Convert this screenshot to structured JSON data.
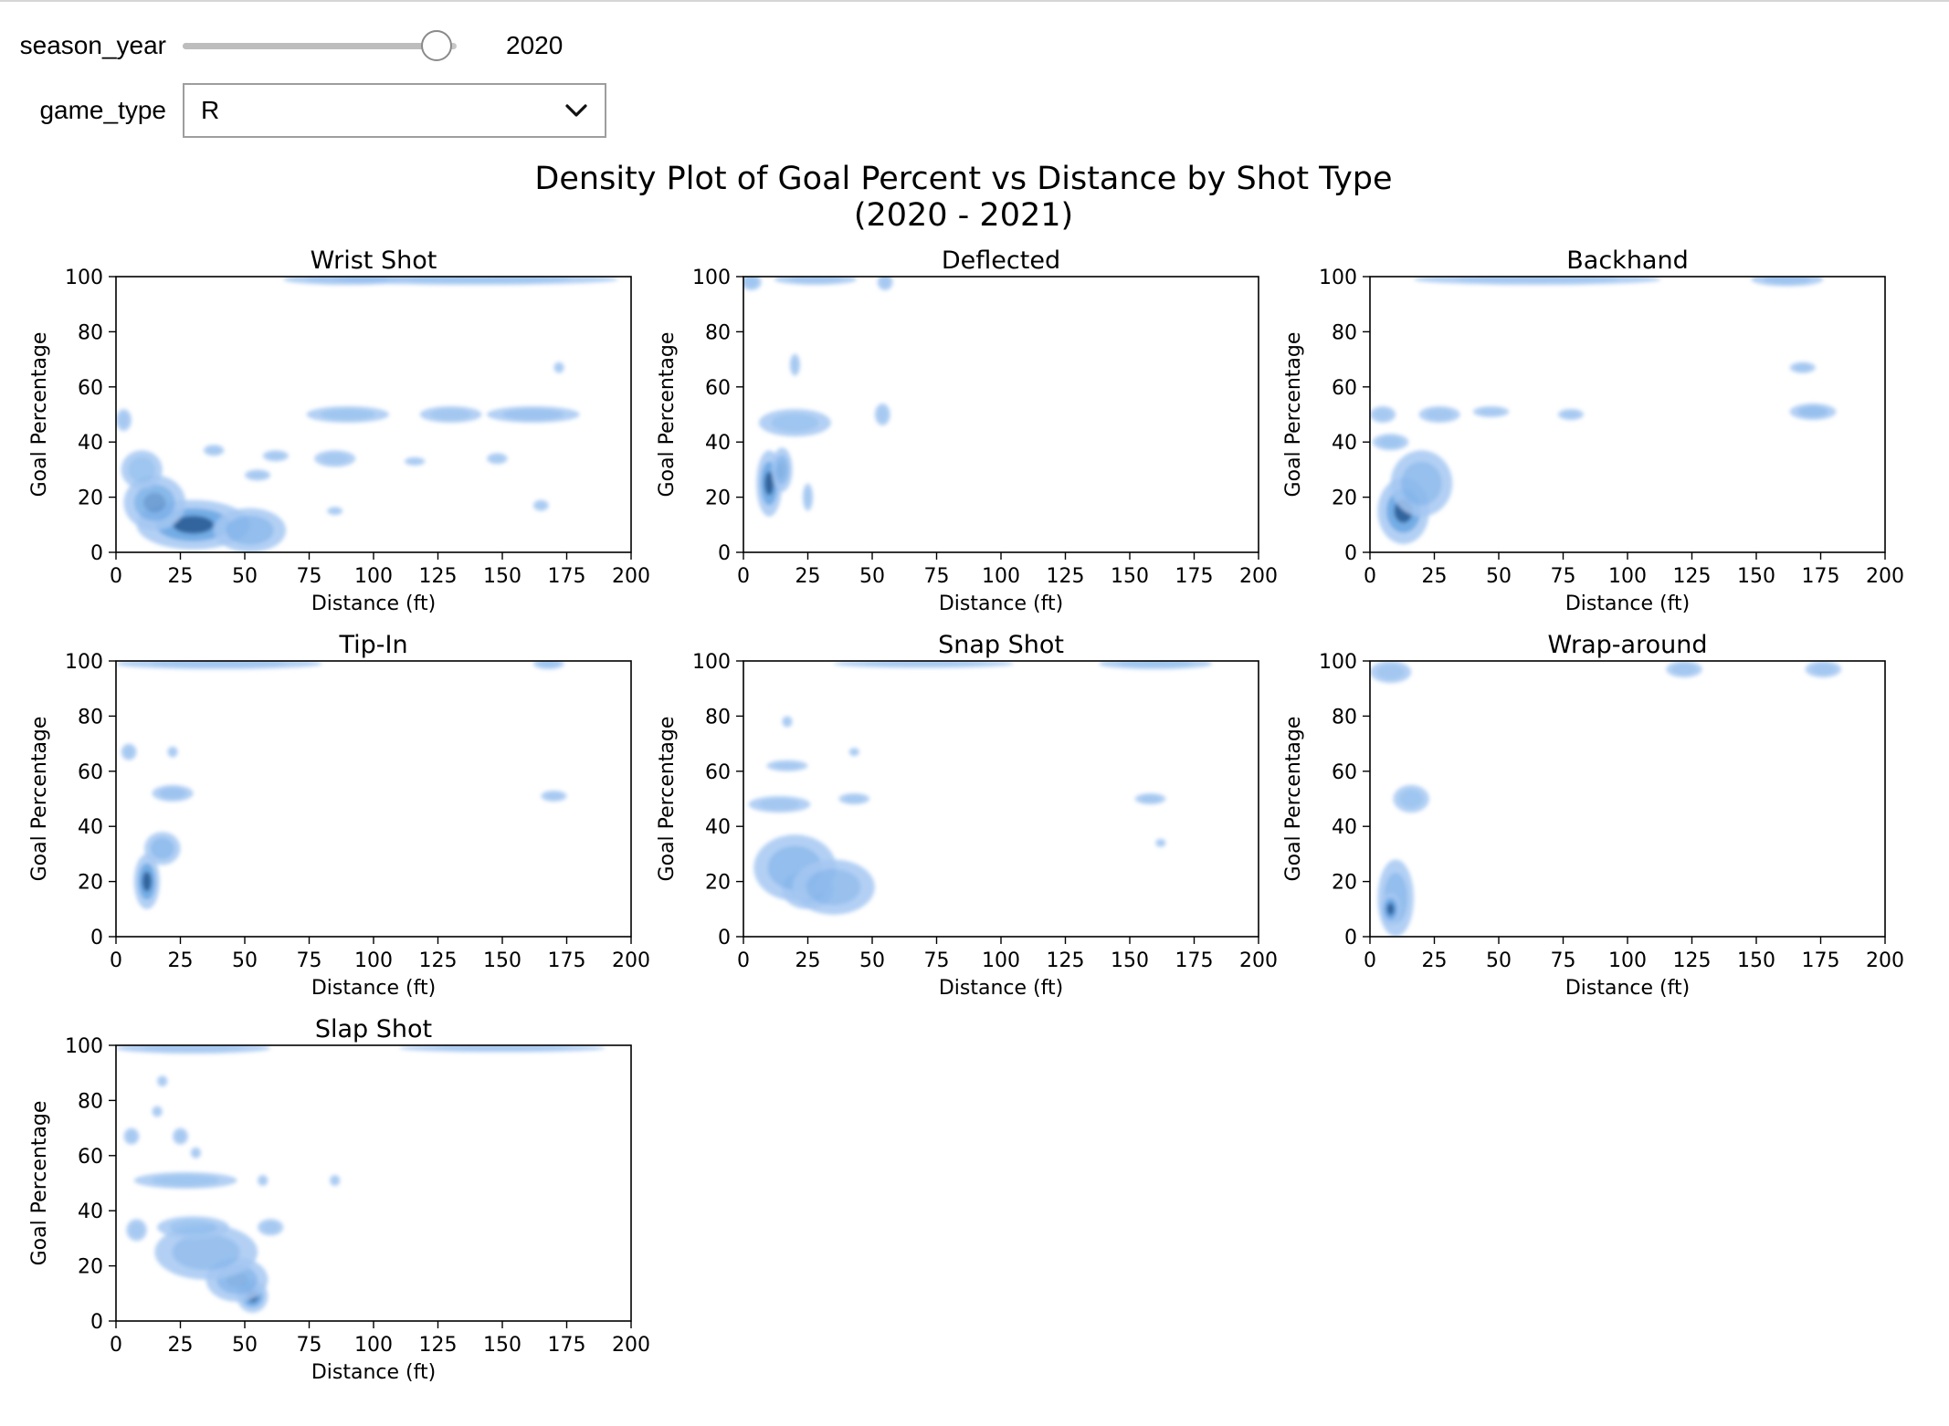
{
  "controls": {
    "season_label": "season_year",
    "season_value": 2020,
    "season_value_text": "2020",
    "season_fraction": 0.98,
    "game_type_label": "game_type",
    "game_type_value": "R"
  },
  "colors": {
    "light": "#a6c8f2",
    "mid": "#3f8fdb",
    "dark": "#1d4d84",
    "axis": "#000000"
  },
  "chart_data": {
    "type": "heatmap",
    "title": "Density Plot of Goal Percent vs Distance by Shot Type",
    "subtitle": "(2020 - 2021)",
    "xlabel": "Distance (ft)",
    "ylabel": "Goal Percentage",
    "xlim": [
      0,
      200
    ],
    "ylim": [
      0,
      100
    ],
    "xticks": [
      "0",
      "25",
      "50",
      "75",
      "100",
      "125",
      "150",
      "175",
      "200"
    ],
    "yticks": [
      "0",
      "20",
      "40",
      "60",
      "80",
      "100"
    ],
    "grid": false,
    "panels": [
      {
        "title": "Wrist Shot",
        "blobs": [
          {
            "x": 30,
            "y": 10,
            "w": 22,
            "h": 9,
            "d": 1.0
          },
          {
            "x": 15,
            "y": 18,
            "w": 12,
            "h": 10,
            "d": 0.65
          },
          {
            "x": 52,
            "y": 8,
            "w": 14,
            "h": 8,
            "d": 0.5
          },
          {
            "x": 10,
            "y": 30,
            "w": 8,
            "h": 7,
            "d": 0.3
          },
          {
            "x": 3,
            "y": 48,
            "w": 3,
            "h": 4,
            "d": 0.2
          },
          {
            "x": 55,
            "y": 28,
            "w": 5,
            "h": 2,
            "d": 0.2
          },
          {
            "x": 38,
            "y": 37,
            "w": 4,
            "h": 2,
            "d": 0.2
          },
          {
            "x": 62,
            "y": 35,
            "w": 5,
            "h": 2,
            "d": 0.2
          },
          {
            "x": 85,
            "y": 34,
            "w": 8,
            "h": 3,
            "d": 0.2
          },
          {
            "x": 90,
            "y": 50,
            "w": 16,
            "h": 3,
            "d": 0.3
          },
          {
            "x": 130,
            "y": 50,
            "w": 12,
            "h": 3,
            "d": 0.25
          },
          {
            "x": 162,
            "y": 50,
            "w": 18,
            "h": 3,
            "d": 0.35
          },
          {
            "x": 148,
            "y": 34,
            "w": 4,
            "h": 2,
            "d": 0.15
          },
          {
            "x": 116,
            "y": 33,
            "w": 4,
            "h": 1.5,
            "d": 0.15
          },
          {
            "x": 165,
            "y": 17,
            "w": 3,
            "h": 2,
            "d": 0.15
          },
          {
            "x": 85,
            "y": 15,
            "w": 3,
            "h": 1.5,
            "d": 0.15
          },
          {
            "x": 172,
            "y": 67,
            "w": 2,
            "h": 2,
            "d": 0.15
          },
          {
            "x": 140,
            "y": 99,
            "w": 55,
            "h": 2,
            "d": 0.3
          },
          {
            "x": 90,
            "y": 99,
            "w": 25,
            "h": 2,
            "d": 0.25
          }
        ]
      },
      {
        "title": "Deflected",
        "blobs": [
          {
            "x": 10,
            "y": 25,
            "w": 5,
            "h": 12,
            "d": 1.0
          },
          {
            "x": 15,
            "y": 30,
            "w": 4,
            "h": 8,
            "d": 0.55
          },
          {
            "x": 20,
            "y": 47,
            "w": 14,
            "h": 5,
            "d": 0.3
          },
          {
            "x": 20,
            "y": 68,
            "w": 2,
            "h": 4,
            "d": 0.2
          },
          {
            "x": 54,
            "y": 50,
            "w": 3,
            "h": 4,
            "d": 0.2
          },
          {
            "x": 25,
            "y": 20,
            "w": 2,
            "h": 5,
            "d": 0.2
          },
          {
            "x": 3,
            "y": 98,
            "w": 4,
            "h": 3,
            "d": 0.3
          },
          {
            "x": 28,
            "y": 99,
            "w": 16,
            "h": 2,
            "d": 0.25
          },
          {
            "x": 55,
            "y": 98,
            "w": 3,
            "h": 3,
            "d": 0.2
          }
        ]
      },
      {
        "title": "Backhand",
        "blobs": [
          {
            "x": 13,
            "y": 15,
            "w": 10,
            "h": 12,
            "d": 1.0
          },
          {
            "x": 20,
            "y": 25,
            "w": 12,
            "h": 12,
            "d": 0.45
          },
          {
            "x": 8,
            "y": 40,
            "w": 7,
            "h": 3,
            "d": 0.3
          },
          {
            "x": 5,
            "y": 50,
            "w": 5,
            "h": 3,
            "d": 0.2
          },
          {
            "x": 27,
            "y": 50,
            "w": 8,
            "h": 3,
            "d": 0.25
          },
          {
            "x": 47,
            "y": 51,
            "w": 7,
            "h": 2,
            "d": 0.2
          },
          {
            "x": 78,
            "y": 50,
            "w": 5,
            "h": 2,
            "d": 0.2
          },
          {
            "x": 172,
            "y": 51,
            "w": 9,
            "h": 3,
            "d": 0.45
          },
          {
            "x": 168,
            "y": 67,
            "w": 5,
            "h": 2,
            "d": 0.25
          },
          {
            "x": 65,
            "y": 99,
            "w": 48,
            "h": 2,
            "d": 0.25
          },
          {
            "x": 162,
            "y": 99,
            "w": 14,
            "h": 2.5,
            "d": 0.35
          }
        ]
      },
      {
        "title": "Tip-In",
        "blobs": [
          {
            "x": 12,
            "y": 20,
            "w": 5,
            "h": 10,
            "d": 1.0
          },
          {
            "x": 18,
            "y": 32,
            "w": 7,
            "h": 6,
            "d": 0.5
          },
          {
            "x": 22,
            "y": 52,
            "w": 8,
            "h": 3,
            "d": 0.35
          },
          {
            "x": 5,
            "y": 67,
            "w": 3,
            "h": 3,
            "d": 0.2
          },
          {
            "x": 22,
            "y": 67,
            "w": 2,
            "h": 2,
            "d": 0.15
          },
          {
            "x": 170,
            "y": 51,
            "w": 5,
            "h": 2,
            "d": 0.2
          },
          {
            "x": 40,
            "y": 99,
            "w": 40,
            "h": 2,
            "d": 0.25
          },
          {
            "x": 168,
            "y": 99,
            "w": 6,
            "h": 2,
            "d": 0.3
          }
        ]
      },
      {
        "title": "Snap Shot",
        "blobs": [
          {
            "x": 25,
            "y": 17,
            "w": 10,
            "h": 7,
            "d": 1.0
          },
          {
            "x": 20,
            "y": 25,
            "w": 16,
            "h": 12,
            "d": 0.5
          },
          {
            "x": 35,
            "y": 18,
            "w": 16,
            "h": 10,
            "d": 0.4
          },
          {
            "x": 14,
            "y": 48,
            "w": 12,
            "h": 3,
            "d": 0.25
          },
          {
            "x": 17,
            "y": 62,
            "w": 8,
            "h": 2,
            "d": 0.2
          },
          {
            "x": 43,
            "y": 50,
            "w": 6,
            "h": 2,
            "d": 0.2
          },
          {
            "x": 17,
            "y": 78,
            "w": 2,
            "h": 2,
            "d": 0.15
          },
          {
            "x": 43,
            "y": 67,
            "w": 2,
            "h": 1.5,
            "d": 0.15
          },
          {
            "x": 158,
            "y": 50,
            "w": 6,
            "h": 2,
            "d": 0.25
          },
          {
            "x": 162,
            "y": 34,
            "w": 2,
            "h": 1.5,
            "d": 0.15
          },
          {
            "x": 160,
            "y": 99,
            "w": 22,
            "h": 2,
            "d": 0.3
          },
          {
            "x": 70,
            "y": 99,
            "w": 35,
            "h": 1.5,
            "d": 0.2
          }
        ]
      },
      {
        "title": "Wrap-around",
        "blobs": [
          {
            "x": 10,
            "y": 14,
            "w": 7,
            "h": 14,
            "d": 0.5
          },
          {
            "x": 8,
            "y": 10,
            "w": 4,
            "h": 6,
            "d": 1.0
          },
          {
            "x": 16,
            "y": 50,
            "w": 7,
            "h": 5,
            "d": 0.3
          },
          {
            "x": 8,
            "y": 96,
            "w": 8,
            "h": 4,
            "d": 0.25
          },
          {
            "x": 122,
            "y": 97,
            "w": 7,
            "h": 3,
            "d": 0.25
          },
          {
            "x": 176,
            "y": 97,
            "w": 7,
            "h": 3,
            "d": 0.25
          }
        ]
      },
      {
        "title": "Slap Shot",
        "blobs": [
          {
            "x": 53,
            "y": 9,
            "w": 6,
            "h": 6,
            "d": 1.0
          },
          {
            "x": 47,
            "y": 15,
            "w": 12,
            "h": 8,
            "d": 0.55
          },
          {
            "x": 35,
            "y": 25,
            "w": 20,
            "h": 10,
            "d": 0.4
          },
          {
            "x": 30,
            "y": 34,
            "w": 14,
            "h": 4,
            "d": 0.3
          },
          {
            "x": 27,
            "y": 51,
            "w": 20,
            "h": 3,
            "d": 0.3
          },
          {
            "x": 60,
            "y": 34,
            "w": 5,
            "h": 3,
            "d": 0.2
          },
          {
            "x": 8,
            "y": 33,
            "w": 4,
            "h": 4,
            "d": 0.2
          },
          {
            "x": 6,
            "y": 67,
            "w": 3,
            "h": 3,
            "d": 0.2
          },
          {
            "x": 25,
            "y": 67,
            "w": 3,
            "h": 3,
            "d": 0.2
          },
          {
            "x": 18,
            "y": 87,
            "w": 2,
            "h": 2,
            "d": 0.15
          },
          {
            "x": 16,
            "y": 76,
            "w": 2,
            "h": 2,
            "d": 0.15
          },
          {
            "x": 31,
            "y": 61,
            "w": 2,
            "h": 2,
            "d": 0.15
          },
          {
            "x": 57,
            "y": 51,
            "w": 2,
            "h": 2,
            "d": 0.15
          },
          {
            "x": 85,
            "y": 51,
            "w": 2,
            "h": 2,
            "d": 0.15
          },
          {
            "x": 30,
            "y": 99,
            "w": 30,
            "h": 2,
            "d": 0.2
          },
          {
            "x": 150,
            "y": 99,
            "w": 40,
            "h": 1.5,
            "d": 0.2
          }
        ]
      }
    ]
  }
}
